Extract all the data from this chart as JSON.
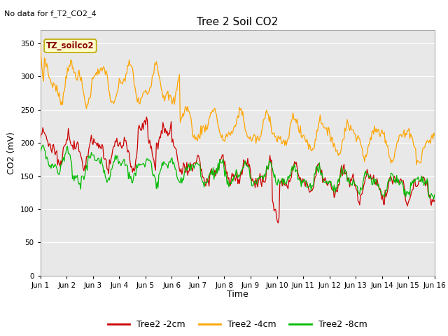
{
  "title": "Tree 2 Soil CO2",
  "no_data_text": "No data for f_T2_CO2_4",
  "ylabel": "CO2 (mV)",
  "xlabel": "Time",
  "annotation": "TZ_soilco2",
  "ylim": [
    0,
    370
  ],
  "yticks": [
    0,
    50,
    100,
    150,
    200,
    250,
    300,
    350
  ],
  "x_labels": [
    "Jun 1",
    "Jun 2",
    "Jun 3",
    "Jun 4",
    "Jun 5",
    "Jun 6",
    "Jun 7",
    "Jun 8",
    "Jun 9",
    "Jun 10",
    "Jun 11",
    "Jun 12",
    "Jun 13",
    "Jun 14",
    "Jun 15",
    "Jun 16"
  ],
  "colors": {
    "red": "#cc0000",
    "orange": "#ffa500",
    "green": "#00bb00",
    "bg": "#e8e8e8",
    "annotation_bg": "#ffffcc",
    "annotation_border": "#bbaa00"
  },
  "legend": [
    {
      "label": "Tree2 -2cm",
      "color": "#cc0000"
    },
    {
      "label": "Tree2 -4cm",
      "color": "#ffa500"
    },
    {
      "label": "Tree2 -8cm",
      "color": "#00bb00"
    }
  ]
}
